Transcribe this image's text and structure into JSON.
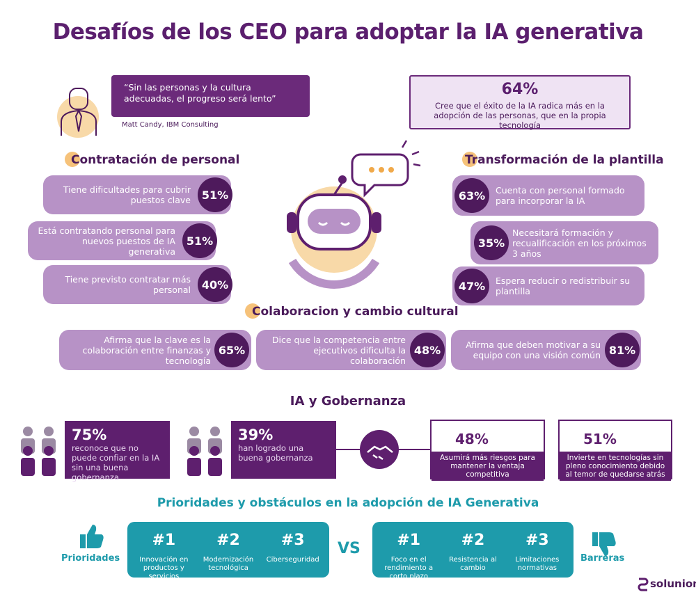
{
  "title": "Desafíos de los CEO para adoptar la IA generativa",
  "quote": {
    "text": "“Sin las personas y la cultura adecuadas, el progreso será lento”",
    "author": "Matt Candy, IBM Consulting"
  },
  "highlight": {
    "value": "64%",
    "text": "Cree que el éxito de la IA radica más en la adopción de las personas, que en la propia tecnología"
  },
  "hiring": {
    "title": "Contratación de personal",
    "items": [
      {
        "text": "Tiene dificultades para cubrir puestos clave",
        "value": "51%"
      },
      {
        "text": "Está contratando personal para nuevos puestos de IA generativa",
        "value": "51%"
      },
      {
        "text": "Tiene previsto contratar más personal",
        "value": "40%"
      }
    ]
  },
  "workforce": {
    "title": "Transformación de la plantilla",
    "items": [
      {
        "text": "Cuenta con personal formado para incorporar la IA",
        "value": "63%"
      },
      {
        "text": "Necesitará formación y recualificación en los próximos 3 años",
        "value": "35%"
      },
      {
        "text": "Espera reducir o redistribuir su plantilla",
        "value": "47%"
      }
    ]
  },
  "culture": {
    "title": "Colaboracion y cambio cultural",
    "items": [
      {
        "text": "Afirma que la clave es la colaboración entre finanzas y tecnología",
        "value": "65%"
      },
      {
        "text": "Dice que la competencia entre ejecutivos dificulta la colaboración",
        "value": "48%"
      },
      {
        "text": "Afirma que deben motivar a su equipo con una visión común",
        "value": "81%"
      }
    ]
  },
  "governance": {
    "title": "IA y Gobernanza",
    "items": [
      {
        "value": "75%",
        "text": "reconoce que no puede confiar en la IA sin una buena gobernanza"
      },
      {
        "value": "39%",
        "text": "han logrado una buena gobernanza"
      },
      {
        "value": "48%",
        "text": "Asumirá más riesgos para mantener la ventaja competitiva"
      },
      {
        "value": "51%",
        "text": "Invierte en tecnologías sin pleno conocimiento debido al temor de quedarse atrás"
      }
    ]
  },
  "priorities": {
    "title": "Prioridades y obstáculos en la adopción de IA Generativa",
    "priorities_label": "Prioridades",
    "barriers_label": "Barreras",
    "vs": "VS",
    "priorities_items": [
      {
        "rank": "#1",
        "text": "Innovación en productos y servicios"
      },
      {
        "rank": "#2",
        "text": "Modernización tecnológica"
      },
      {
        "rank": "#3",
        "text": "Ciberseguridad"
      }
    ],
    "barriers_items": [
      {
        "rank": "#1",
        "text": "Foco en el rendimiento a corto plazo"
      },
      {
        "rank": "#2",
        "text": "Resistencia al cambio"
      },
      {
        "rank": "#3",
        "text": "Limitaciones normativas"
      }
    ]
  },
  "brand": "solunion"
}
